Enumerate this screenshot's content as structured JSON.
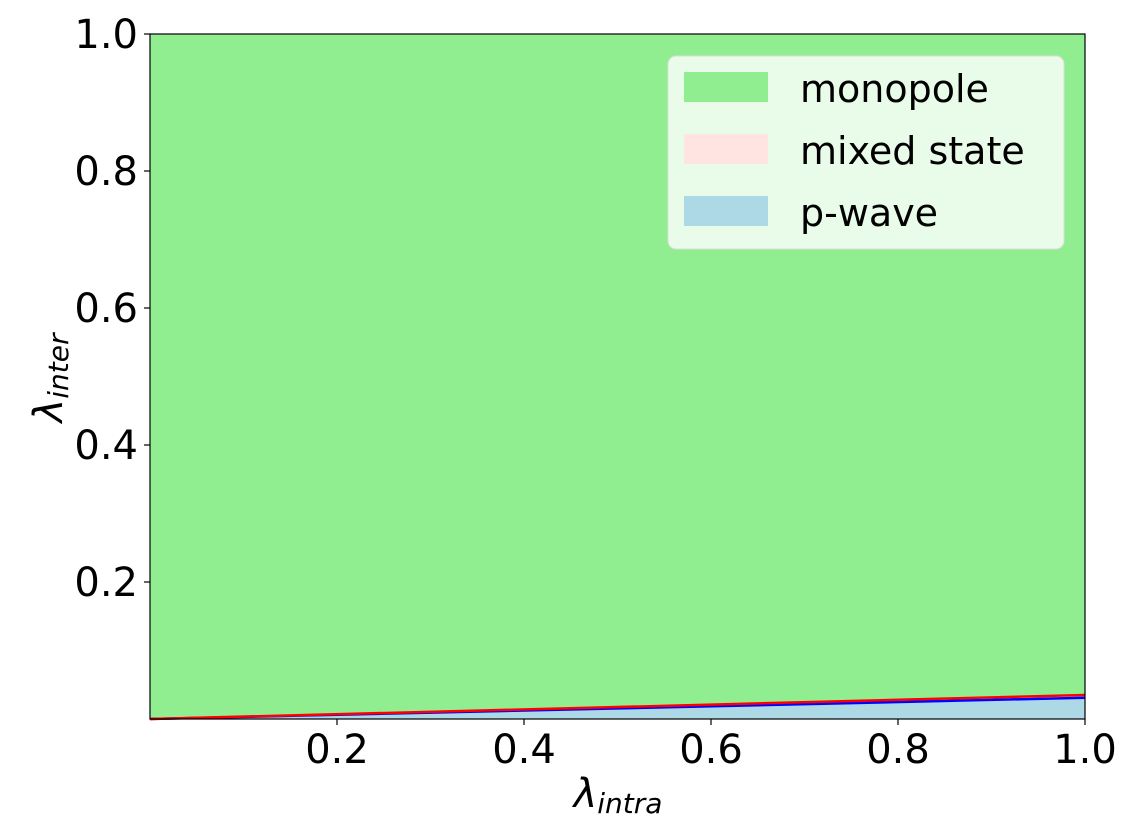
{
  "chart_data": {
    "type": "area",
    "xlabel": {
      "symbol": "λ",
      "subscript": "intra"
    },
    "ylabel": {
      "symbol": "λ",
      "subscript": "inter"
    },
    "xlim": [
      0.0,
      1.0
    ],
    "ylim": [
      0.0,
      1.0
    ],
    "x_ticks": [
      0.2,
      0.4,
      0.6,
      0.8,
      1.0
    ],
    "x_tick_labels": [
      "0.2",
      "0.4",
      "0.6",
      "0.8",
      "1.0"
    ],
    "y_ticks": [
      0.2,
      0.4,
      0.6,
      0.8,
      1.0
    ],
    "y_tick_labels": [
      "0.2",
      "0.4",
      "0.6",
      "0.8",
      "1.0"
    ],
    "grid": false,
    "legend_position": "top-right",
    "series": [
      {
        "name": "monopole",
        "color": "#90ee90",
        "region": "above red boundary"
      },
      {
        "name": "mixed state",
        "color": "#ffe4e1",
        "region": "between blue and red boundaries"
      },
      {
        "name": "p-wave",
        "color": "#add8e6",
        "region": "below blue boundary"
      }
    ],
    "boundaries": [
      {
        "color": "#0000ff",
        "x": [
          0.0,
          1.0
        ],
        "y": [
          0.0,
          0.031
        ]
      },
      {
        "color": "#ff0000",
        "x": [
          0.0,
          1.0
        ],
        "y": [
          0.0,
          0.035
        ]
      }
    ]
  }
}
